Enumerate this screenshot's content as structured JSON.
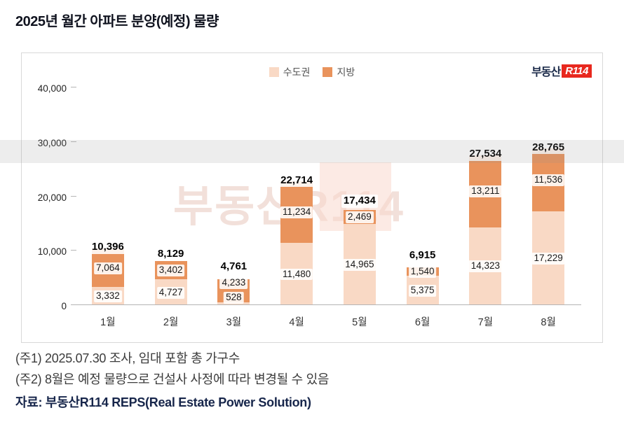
{
  "page": {
    "title": "2025년 월간 아파트 분양(예정) 물량",
    "notes": [
      "(주1) 2025.07.30 조사, 임대 포함 총 가구수",
      "(주2) 8월은 예정 물량으로 건설사 사정에 따라 변경될 수 있음"
    ],
    "source": "자료: 부동산R114 REPS(Real Estate Power Solution)"
  },
  "logo": {
    "text": "부동산",
    "badge": "R114"
  },
  "watermark": "부동산R114",
  "chart_data": {
    "type": "bar",
    "stacked": true,
    "title": "2025년 월간 아파트 분양(예정) 물량",
    "categories": [
      "1월",
      "2월",
      "3월",
      "4월",
      "5월",
      "6월",
      "7월",
      "8월"
    ],
    "series": [
      {
        "name": "수도권",
        "color": "#f9d9c5",
        "values": [
          3332,
          4727,
          528,
          11480,
          14965,
          5375,
          14323,
          17229
        ]
      },
      {
        "name": "지방",
        "color": "#e9935c",
        "values": [
          7064,
          3402,
          4233,
          11234,
          2469,
          1540,
          13211,
          11536
        ]
      }
    ],
    "totals": [
      10396,
      8129,
      4761,
      22714,
      17434,
      6915,
      27534,
      28765
    ],
    "y_ticks": [
      0,
      10000,
      20000,
      30000,
      40000
    ],
    "ylim": [
      0,
      40000
    ],
    "xlabel": "",
    "ylabel": "",
    "grid": false,
    "legend_position": "top-center"
  }
}
